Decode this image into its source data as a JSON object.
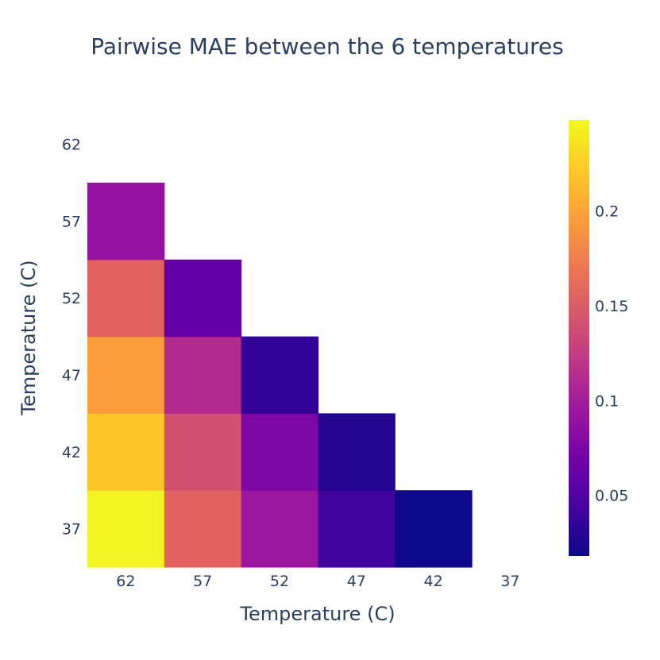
{
  "chart_data": {
    "type": "heatmap",
    "title": "Pairwise MAE between the 6 temperatures",
    "xlabel": "Temperature (C)",
    "ylabel": "Temperature (C)",
    "x_categories": [
      "62",
      "57",
      "52",
      "47",
      "42",
      "37"
    ],
    "y_categories": [
      "37",
      "42",
      "47",
      "52",
      "57",
      "62"
    ],
    "z": [
      [
        0.245,
        0.155,
        0.095,
        0.04,
        0.018,
        null
      ],
      [
        0.22,
        0.14,
        0.075,
        0.028,
        null,
        null
      ],
      [
        0.195,
        0.11,
        0.035,
        null,
        null,
        null
      ],
      [
        0.155,
        0.06,
        null,
        null,
        null,
        null
      ],
      [
        0.09,
        null,
        null,
        null,
        null,
        null
      ],
      [
        null,
        null,
        null,
        null,
        null,
        null
      ]
    ],
    "colorscale": "Plasma",
    "zmin": 0.018,
    "zmax": 0.248,
    "colorbar_ticks": [
      0.05,
      0.1,
      0.15,
      0.2
    ],
    "colorbar_tick_labels": [
      "0.05",
      "0.1",
      "0.15",
      "0.2"
    ],
    "colors": {
      "text": "#2a3f5f",
      "plasma": [
        "#0d0887",
        "#46039f",
        "#7201a8",
        "#9c179e",
        "#bd3786",
        "#d8576b",
        "#ed7953",
        "#fb9f3a",
        "#fdca26",
        "#f0f921"
      ]
    }
  }
}
